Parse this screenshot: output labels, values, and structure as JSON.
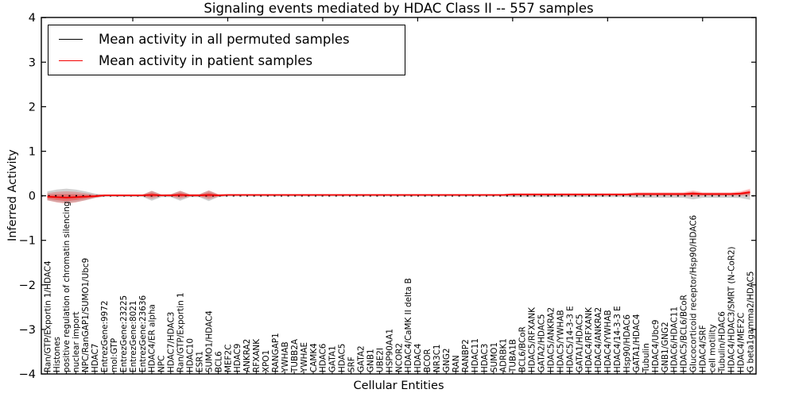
{
  "chart_data": {
    "type": "line",
    "title": "Signaling events mediated by HDAC Class II -- 557 samples",
    "xlabel": "Cellular Entities",
    "ylabel": "Inferred Activity",
    "ylim": [
      -4,
      4
    ],
    "grid": false,
    "legend_position": "upper left",
    "ytick_values": [
      4,
      3,
      2,
      1,
      0,
      -1,
      -2,
      -3,
      -4
    ],
    "ytick_labels": [
      "4",
      "3",
      "2",
      "1",
      "0",
      "−1",
      "−2",
      "−3",
      "−4"
    ],
    "legend": [
      {
        "label": "Mean activity in all permuted samples",
        "color": "#000000"
      },
      {
        "label": "Mean activity in patient samples",
        "color": "#f40000"
      }
    ],
    "colors": {
      "patient_line": "#f40000",
      "permuted_line": "#000000",
      "patient_band": "rgba(244,0,0,0.22)",
      "patient_band_inner": "rgba(244,0,0,0.30)",
      "permuted_band": "rgba(110,110,110,0.32)"
    },
    "categories": [
      "Ran/GTP/Exportin 1/HDAC4",
      "Histones",
      "positive regulation of chromatin silencing",
      "nuclear import",
      "NPC/RanGAP1/SUMO1/Ubc9",
      "HDAC7",
      "EntrezGene:9972",
      "mol:GTP",
      "EntrezGene:23225",
      "EntrezGene:8021",
      "EntrezGene:23636",
      "HDAC4/ER alpha",
      "NPC",
      "HDAC7/HDAC3",
      "Ran/GTP/Exportin 1",
      "HDAC10",
      "ESR1",
      "SUMO1/HDAC4",
      "BCL6",
      "MEF2C",
      "HDAC9",
      "ANKRA2",
      "RFXANK",
      "XPO1",
      "RANGAP1",
      "YWHAB",
      "TUBB2A",
      "YWHAE",
      "CAMK4",
      "HDAC6",
      "GATA1",
      "HDAC5",
      "SRF",
      "GATA2",
      "GNB1",
      "UBE2I",
      "HSP90AA1",
      "NCOR2",
      "HDAC4/CaMK II delta B",
      "HDAC4",
      "BCOR",
      "NR3C1",
      "GNG2",
      "RAN",
      "RANBP2",
      "HDAC11",
      "HDAC3",
      "SUMO1",
      "ADRBK1",
      "TUBA1B",
      "BCL6/BCoR",
      "HDAC5/RFXANK",
      "GATA2/HDAC5",
      "HDAC5/ANKRA2",
      "HDAC5/YWHAB",
      "HDAC5/14-3-3 E",
      "GATA1/HDAC5",
      "HDAC4/RFXANK",
      "HDAC4/ANKRA2",
      "HDAC4/YWHAB",
      "HDAC4/14-3-3 E",
      "Hsp90/HDAC6",
      "GATA1/HDAC4",
      "Tubulin",
      "HDAC4/Ubc9",
      "GNB1/GNG2",
      "HDAC6/HDAC11",
      "HDAC5/BCL6/BCoR",
      "Glucocorticoid receptor/Hsp90/HDAC6",
      "HDAC4/SRF",
      "cell motility",
      "Tubulin/HDAC6",
      "HDAC4/HDAC3/SMRT (N-CoR2)",
      "HDAC4/MEF2C",
      "G beta1gamma2/HDAC5"
    ],
    "series": [
      {
        "name": "Mean activity in all permuted samples",
        "values": [
          0,
          0,
          0,
          0,
          0,
          0,
          0,
          0,
          0,
          0,
          0,
          0,
          0,
          0,
          0,
          0,
          0,
          0,
          0,
          0,
          0,
          0,
          0,
          0,
          0,
          0,
          0,
          0,
          0,
          0,
          0,
          0,
          0,
          0,
          0,
          0,
          0,
          0,
          0,
          0,
          0,
          0,
          0,
          0,
          0,
          0,
          0,
          0,
          0,
          0,
          0,
          0,
          0,
          0,
          0,
          0,
          0,
          0,
          0,
          0,
          0,
          0,
          0,
          0,
          0,
          0,
          0,
          0,
          0,
          0,
          0,
          0,
          0,
          0,
          0
        ],
        "spread": [
          0.1,
          0.14,
          0.16,
          0.14,
          0.1,
          0.05,
          0.02,
          0.02,
          0.02,
          0.02,
          0.02,
          0.11,
          0.03,
          0.03,
          0.11,
          0.03,
          0.03,
          0.12,
          0.03,
          0.015,
          0.015,
          0.015,
          0.015,
          0.015,
          0.015,
          0.015,
          0.015,
          0.015,
          0.015,
          0.015,
          0.015,
          0.015,
          0.015,
          0.015,
          0.015,
          0.015,
          0.015,
          0.015,
          0.015,
          0.015,
          0.015,
          0.015,
          0.015,
          0.015,
          0.015,
          0.015,
          0.015,
          0.015,
          0.015,
          0.03,
          0.03,
          0.03,
          0.03,
          0.03,
          0.03,
          0.03,
          0.03,
          0.03,
          0.03,
          0.03,
          0.03,
          0.03,
          0.045,
          0.045,
          0.045,
          0.045,
          0.045,
          0.045,
          0.08,
          0.045,
          0.045,
          0.045,
          0.045,
          0.05,
          0.09
        ]
      },
      {
        "name": "Mean activity in patient samples",
        "values": [
          -0.02,
          -0.03,
          -0.04,
          -0.03,
          -0.02,
          -0.01,
          0.01,
          0.01,
          0.01,
          0.01,
          0.01,
          0.02,
          0.01,
          0.01,
          0.02,
          0.01,
          0.01,
          0.02,
          0.01,
          0.02,
          0.02,
          0.02,
          0.02,
          0.02,
          0.02,
          0.02,
          0.02,
          0.02,
          0.02,
          0.02,
          0.02,
          0.02,
          0.02,
          0.02,
          0.02,
          0.02,
          0.02,
          0.02,
          0.02,
          0.02,
          0.02,
          0.02,
          0.02,
          0.02,
          0.02,
          0.02,
          0.02,
          0.02,
          0.02,
          0.03,
          0.03,
          0.03,
          0.03,
          0.03,
          0.03,
          0.03,
          0.03,
          0.03,
          0.03,
          0.03,
          0.03,
          0.03,
          0.04,
          0.04,
          0.04,
          0.04,
          0.04,
          0.04,
          0.05,
          0.04,
          0.04,
          0.04,
          0.04,
          0.05,
          0.08
        ],
        "spread": [
          0.08,
          0.12,
          0.14,
          0.12,
          0.08,
          0.04,
          0.02,
          0.02,
          0.02,
          0.02,
          0.02,
          0.09,
          0.02,
          0.03,
          0.09,
          0.03,
          0.03,
          0.1,
          0.03,
          0.015,
          0.015,
          0.015,
          0.015,
          0.015,
          0.015,
          0.015,
          0.015,
          0.015,
          0.015,
          0.015,
          0.015,
          0.015,
          0.015,
          0.015,
          0.015,
          0.015,
          0.015,
          0.015,
          0.015,
          0.015,
          0.015,
          0.015,
          0.015,
          0.015,
          0.015,
          0.015,
          0.015,
          0.015,
          0.015,
          0.03,
          0.03,
          0.03,
          0.03,
          0.03,
          0.03,
          0.03,
          0.03,
          0.03,
          0.03,
          0.03,
          0.03,
          0.03,
          0.04,
          0.04,
          0.04,
          0.04,
          0.04,
          0.04,
          0.07,
          0.04,
          0.04,
          0.04,
          0.04,
          0.05,
          0.08
        ]
      }
    ]
  }
}
